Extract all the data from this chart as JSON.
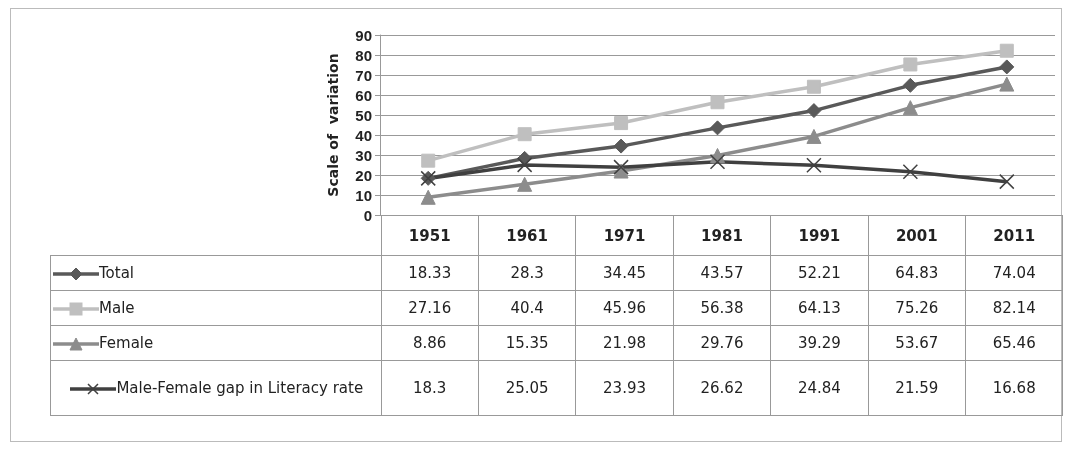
{
  "chart_data": {
    "type": "line",
    "ylabel": "Scale of  variation",
    "categories": [
      "1951",
      "1961",
      "1971",
      "1981",
      "1991",
      "2001",
      "2011"
    ],
    "series": [
      {
        "name": "Total",
        "color": "#595959",
        "marker": "diamond",
        "values": [
          18.33,
          28.3,
          34.45,
          43.57,
          52.21,
          64.83,
          74.04
        ]
      },
      {
        "name": "Male",
        "color": "#bfbfbf",
        "marker": "square",
        "values": [
          27.16,
          40.4,
          45.96,
          56.38,
          64.13,
          75.26,
          82.14
        ]
      },
      {
        "name": "Female",
        "color": "#8c8c8c",
        "marker": "triangle",
        "values": [
          8.86,
          15.35,
          21.98,
          29.76,
          39.29,
          53.67,
          65.46
        ]
      },
      {
        "name": "Male-Female gap in Literacy rate",
        "color": "#404040",
        "marker": "cross",
        "values": [
          18.3,
          25.05,
          23.93,
          26.62,
          24.84,
          21.59,
          16.68
        ]
      }
    ],
    "ylim": [
      0,
      90
    ],
    "yticks": [
      0,
      10,
      20,
      30,
      40,
      50,
      60,
      70,
      80,
      90
    ],
    "grid": "y",
    "legend": "bottom",
    "data_labels": true
  }
}
